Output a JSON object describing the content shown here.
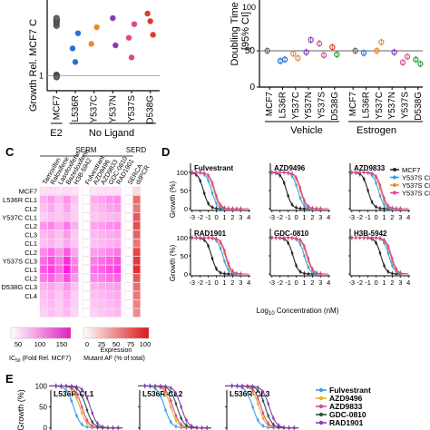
{
  "panel_labels": {
    "c": "C",
    "d": "D",
    "e": "E"
  },
  "chart_data": [
    {
      "id": "A",
      "type": "scatter",
      "ylabel": "Growth Rel. MCF7 C",
      "categories": [
        "MCF7",
        "L536R",
        "Y537C",
        "Y537N",
        "Y537S",
        "D538G"
      ],
      "group_labels": [
        "E2",
        "No Ligand"
      ],
      "reference_line": 1,
      "ylim": [
        0,
        6
      ],
      "points": [
        {
          "cat": "MCF7",
          "y": 4.3,
          "color": "#666666"
        },
        {
          "cat": "MCF7",
          "y": 4.5,
          "color": "#666666"
        },
        {
          "cat": "MCF7",
          "y": 4.6,
          "color": "#666666"
        },
        {
          "cat": "MCF7",
          "y": 4.7,
          "color": "#666666"
        },
        {
          "cat": "MCF7",
          "y": 4.8,
          "color": "#666666"
        },
        {
          "cat": "MCF7",
          "y": 1.05,
          "color": "#666666"
        },
        {
          "cat": "MCF7",
          "y": 0.95,
          "color": "#666666"
        },
        {
          "cat": "MCF7",
          "y": 0.9,
          "color": "#666666"
        },
        {
          "cat": "L536R",
          "y": 3.8,
          "color": "#2a6fd6"
        },
        {
          "cat": "L536R",
          "y": 2.8,
          "color": "#2a6fd6"
        },
        {
          "cat": "L536R",
          "y": 1.9,
          "color": "#2a6fd6"
        },
        {
          "cat": "Y537C",
          "y": 4.2,
          "color": "#e88a2a"
        },
        {
          "cat": "Y537C",
          "y": 3.1,
          "color": "#e88a2a"
        },
        {
          "cat": "Y537N",
          "y": 4.8,
          "color": "#8a3ab9"
        },
        {
          "cat": "Y537N",
          "y": 3.0,
          "color": "#8a3ab9"
        },
        {
          "cat": "Y537S",
          "y": 3.5,
          "color": "#d94a90"
        },
        {
          "cat": "Y537S",
          "y": 2.2,
          "color": "#d94a90"
        },
        {
          "cat": "Y537S",
          "y": 4.4,
          "color": "#d94a90"
        },
        {
          "cat": "D538G",
          "y": 5.1,
          "color": "#d9402a"
        },
        {
          "cat": "D538G",
          "y": 4.6,
          "color": "#d9402a"
        },
        {
          "cat": "D538G",
          "y": 3.7,
          "color": "#d9402a"
        }
      ]
    },
    {
      "id": "B",
      "type": "scatter",
      "ylabel": "Doubling Time (",
      "ylabel2": "[95% CI]",
      "top_tick": "100",
      "categories": [
        "MCF7",
        "L536R",
        "Y537C",
        "Y537N",
        "Y537S",
        "D538G"
      ],
      "group_labels": [
        "Vehicle",
        "Estrogen"
      ],
      "reference_line": 50,
      "ylim": [
        0,
        110
      ],
      "yticks": [
        0,
        50
      ],
      "points": [
        {
          "group": 0,
          "cat": "MCF7",
          "y": 50,
          "color": "#666666"
        },
        {
          "group": 0,
          "cat": "L536R",
          "y": 38,
          "color": "#2a6fd6"
        },
        {
          "group": 0,
          "cat": "L536R",
          "y": 36,
          "color": "#2a6fd6"
        },
        {
          "group": 0,
          "cat": "Y537C",
          "y": 40,
          "color": "#e88a2a"
        },
        {
          "group": 0,
          "cat": "Y537C",
          "y": 46,
          "color": "#e88a2a"
        },
        {
          "group": 0,
          "cat": "Y537N",
          "y": 65,
          "color": "#8a3ab9"
        },
        {
          "group": 0,
          "cat": "Y537N",
          "y": 48,
          "color": "#8a3ab9"
        },
        {
          "group": 0,
          "cat": "Y537S",
          "y": 44,
          "color": "#d94a90"
        },
        {
          "group": 0,
          "cat": "Y537S",
          "y": 60,
          "color": "#d94a90"
        },
        {
          "group": 0,
          "cat": "D538G",
          "y": 45,
          "color": "#2a9a3a"
        },
        {
          "group": 0,
          "cat": "D538G",
          "y": 55,
          "color": "#d9402a"
        },
        {
          "group": 1,
          "cat": "MCF7",
          "y": 50,
          "color": "#666666"
        },
        {
          "group": 1,
          "cat": "L536R",
          "y": 47,
          "color": "#2a6fd6"
        },
        {
          "group": 1,
          "cat": "Y537C",
          "y": 62,
          "color": "#e88a2a"
        },
        {
          "group": 1,
          "cat": "Y537C",
          "y": 50,
          "color": "#e88a2a"
        },
        {
          "group": 1,
          "cat": "Y537N",
          "y": 48,
          "color": "#8a3ab9"
        },
        {
          "group": 1,
          "cat": "Y537S",
          "y": 34,
          "color": "#d94a90"
        },
        {
          "group": 1,
          "cat": "Y537S",
          "y": 42,
          "color": "#d94a90"
        },
        {
          "group": 1,
          "cat": "D538G",
          "y": 38,
          "color": "#2a9a3a"
        },
        {
          "group": 1,
          "cat": "D538G",
          "y": 32,
          "color": "#2a9a3a"
        }
      ]
    },
    {
      "id": "C",
      "type": "heatmap",
      "group_headers": [
        "SERM",
        "SERD"
      ],
      "columns": [
        "Tamoxifen",
        "Raloxifene",
        "Lasofoxifene",
        "Bazedoxifene",
        "H3B-5942",
        "Fulvestrant",
        "AZD9496",
        "AZD9833",
        "GDC-0810",
        "RAD1901",
        "SERCA",
        "ddPCR"
      ],
      "rows": [
        "MCF7",
        "L536R CL1",
        "CL2",
        "Y537C CL1",
        "CL2",
        "CL1",
        "CL2",
        "CL3",
        "Y537S CL1",
        "CL2",
        "CL3",
        "D538G CL1",
        "CL2",
        "CL3",
        "CL4"
      ],
      "row_labels": [
        "MCF7",
        "L536R CL1",
        "CL2",
        "Y537C CL1",
        "CL2",
        "CL3",
        "CL1",
        "CL2",
        "Y537S CL3",
        "CL1",
        "CL2",
        "D538G CL3",
        "CL4",
        "",
        ""
      ],
      "values": [
        [
          8,
          10,
          6,
          10,
          5,
          0,
          4,
          6,
          8,
          9,
          0,
          5
        ],
        [
          40,
          55,
          35,
          60,
          30,
          0,
          45,
          50,
          60,
          65,
          0,
          60
        ],
        [
          30,
          45,
          25,
          50,
          20,
          0,
          35,
          40,
          50,
          55,
          0,
          55
        ],
        [
          20,
          30,
          25,
          35,
          20,
          0,
          25,
          30,
          35,
          40,
          0,
          70
        ],
        [
          60,
          70,
          50,
          80,
          40,
          0,
          50,
          55,
          65,
          70,
          0,
          75
        ],
        [
          35,
          45,
          30,
          55,
          25,
          0,
          35,
          40,
          45,
          50,
          0,
          65
        ],
        [
          30,
          40,
          25,
          45,
          25,
          0,
          30,
          35,
          40,
          45,
          0,
          55
        ],
        [
          70,
          90,
          60,
          100,
          50,
          0,
          55,
          60,
          70,
          80,
          0,
          80
        ],
        [
          90,
          110,
          80,
          130,
          70,
          0,
          75,
          85,
          95,
          110,
          0,
          85
        ],
        [
          100,
          120,
          90,
          140,
          80,
          0,
          85,
          95,
          110,
          120,
          0,
          90
        ],
        [
          80,
          95,
          70,
          110,
          60,
          0,
          70,
          75,
          85,
          95,
          0,
          70
        ],
        [
          40,
          50,
          35,
          60,
          30,
          0,
          40,
          45,
          50,
          55,
          0,
          60
        ],
        [
          30,
          40,
          25,
          45,
          20,
          0,
          30,
          35,
          40,
          45,
          0,
          55
        ],
        [
          25,
          35,
          20,
          40,
          20,
          0,
          25,
          30,
          35,
          40,
          0,
          50
        ],
        [
          20,
          30,
          20,
          35,
          15,
          0,
          20,
          25,
          30,
          35,
          0,
          45
        ]
      ],
      "ic50_ticks": [
        "50",
        "100",
        "150"
      ],
      "ic50_label": "IC",
      "ic50_label_sub": "50",
      "ic50_label_rest": " (Fold Rel. MCF7)",
      "expr_ticks": [
        "0",
        "25",
        "50",
        "75",
        "100"
      ],
      "expr_label1": "Expression",
      "expr_label2": "Mutant AF (% of total)"
    },
    {
      "id": "D",
      "type": "line",
      "ylabel": "Growth (%)",
      "xlabel": "Log",
      "xlabel_sub": "10",
      "xlabel_rest": " Concentration (nM)",
      "xticks": [
        -3,
        -2,
        -1,
        0,
        1,
        2,
        3,
        4
      ],
      "yticks": [
        0,
        50,
        100
      ],
      "legend": [
        {
          "name": "MCF7",
          "color": "#222222"
        },
        {
          "name": "Y537S CL1",
          "color": "#3aa0e8"
        },
        {
          "name": "Y537S CL2",
          "color": "#e88a2a"
        },
        {
          "name": "Y537S CL3",
          "color": "#d94a90"
        }
      ],
      "subplots": [
        {
          "title": "Fulvestrant",
          "ec50": [
            -1.6,
            -0.6,
            -0.3,
            -0.2
          ]
        },
        {
          "title": "AZD9496",
          "ec50": [
            -1.2,
            0.2,
            0.5,
            0.6
          ]
        },
        {
          "title": "AZD9833",
          "ec50": [
            -1.0,
            0.3,
            0.6,
            0.7
          ]
        },
        {
          "title": "RAD1901",
          "ec50": [
            -0.6,
            0.8,
            1.1,
            1.2
          ]
        },
        {
          "title": "GDC-0810",
          "ec50": [
            -0.4,
            1.0,
            1.3,
            1.4
          ]
        },
        {
          "title": "H3B-5942",
          "ec50": [
            0.6,
            1.6,
            1.8,
            1.9
          ]
        }
      ]
    },
    {
      "id": "E",
      "type": "line",
      "ylabel": "Growth (%)",
      "yticks": [
        0,
        50,
        100
      ],
      "legend": [
        {
          "name": "Fulvestrant",
          "color": "#3aa0e8"
        },
        {
          "name": "AZD9496",
          "color": "#e8b02a"
        },
        {
          "name": "AZD9833",
          "color": "#d94a90"
        },
        {
          "name": "GDC-0810",
          "color": "#2a5a3a"
        },
        {
          "name": "RAD1901",
          "color": "#8a3ab9"
        }
      ],
      "subplots": [
        {
          "title": "L536R-CL1",
          "ec50": [
            -0.8,
            -0.2,
            0.0,
            0.4,
            0.8
          ]
        },
        {
          "title": "L536R-CL2",
          "ec50": [
            -0.6,
            0.0,
            0.2,
            0.6,
            1.0
          ]
        },
        {
          "title": "L536R-CL3",
          "ec50": [
            -0.5,
            0.1,
            0.3,
            0.7,
            1.1
          ]
        }
      ]
    }
  ]
}
